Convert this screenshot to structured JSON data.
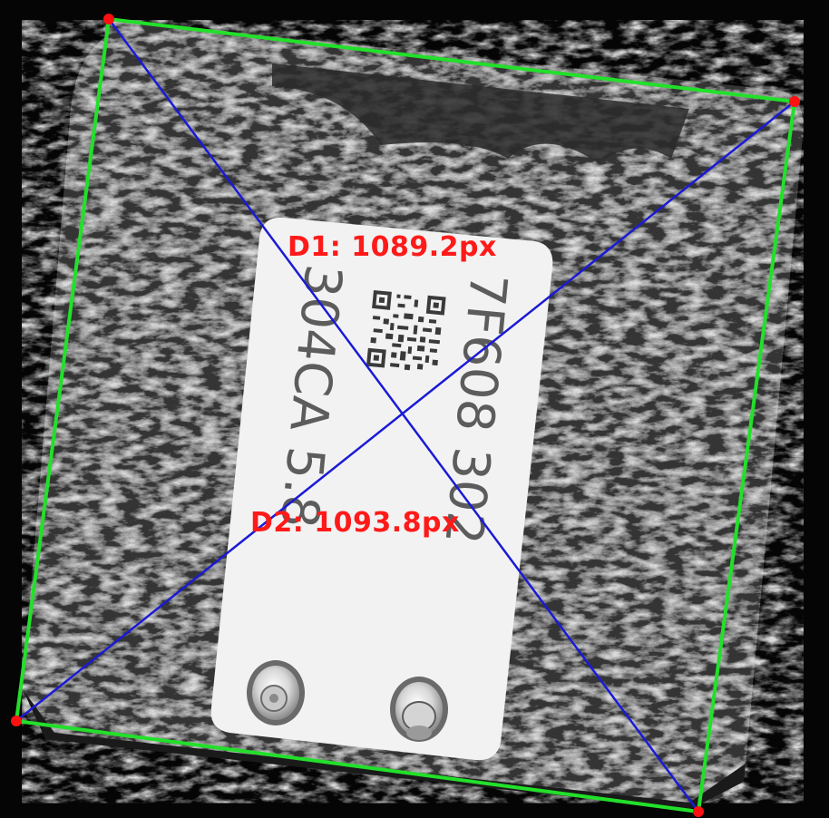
{
  "image": {
    "subject": "metal block with printed label",
    "label_text_line_1": "304CA 5.8",
    "label_text_line_2": "7F608 302",
    "qr_code": "qr-code-icon"
  },
  "measurements": {
    "d1_label": "D1:  1089.2px",
    "d2_label": "D2:  1093.8px"
  },
  "colors": {
    "outline": "#22e02a",
    "diagonal": "#1a1ad6",
    "corner_marker": "#ff1010",
    "label_text": "#ff1a1a",
    "tag_background": "#f2f2f2",
    "tag_print": "#5a5a5a"
  }
}
